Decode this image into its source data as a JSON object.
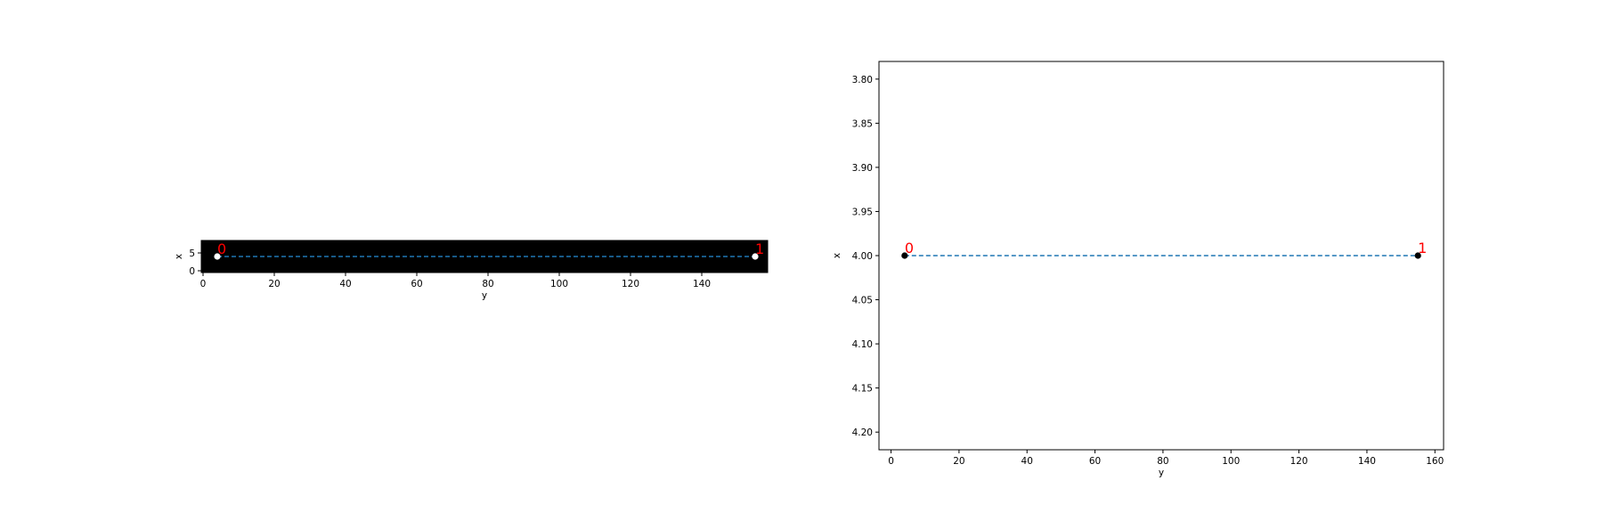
{
  "chart_data": [
    {
      "type": "scatter",
      "image_background": "black",
      "xlabel": "y",
      "ylabel": "x",
      "xlim": [
        -0.5,
        158.5
      ],
      "ylim": [
        8.5,
        -0.5
      ],
      "xticks": [
        "0",
        "20",
        "40",
        "60",
        "80",
        "100",
        "120",
        "140"
      ],
      "yticks": [
        "0",
        "5"
      ],
      "points": [
        {
          "label": "0",
          "x": 4,
          "y": 4
        },
        {
          "label": "1",
          "x": 155,
          "y": 4
        }
      ],
      "line_style": "dashed",
      "colors": {
        "line": "#1f77b4",
        "point": "#ffffff",
        "label": "#ff0000"
      }
    },
    {
      "type": "scatter",
      "xlabel": "y",
      "ylabel": "x",
      "xlim": [
        -3.55,
        162.55
      ],
      "ylim": [
        3.78,
        4.22
      ],
      "xticks": [
        "0",
        "20",
        "40",
        "60",
        "80",
        "100",
        "120",
        "140",
        "160"
      ],
      "yticks": [
        "3.80",
        "3.85",
        "3.90",
        "3.95",
        "4.00",
        "4.05",
        "4.10",
        "4.15",
        "4.20"
      ],
      "points": [
        {
          "label": "0",
          "x": 4,
          "y": 4.0
        },
        {
          "label": "1",
          "x": 155,
          "y": 4.0
        }
      ],
      "line_style": "dashed",
      "colors": {
        "line": "#1f77b4",
        "point": "#000000",
        "label": "#ff0000"
      }
    }
  ]
}
